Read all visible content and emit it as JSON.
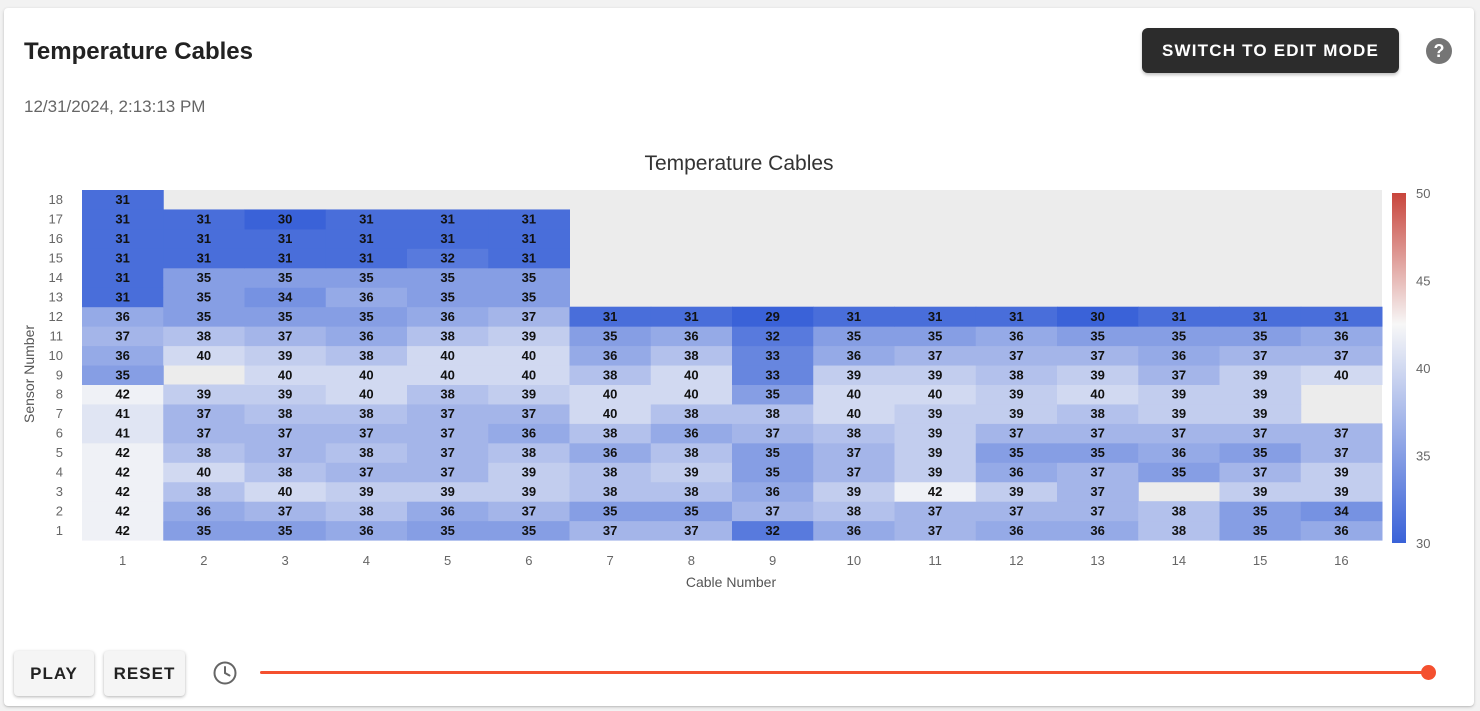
{
  "page": {
    "title": "Temperature Cables",
    "timestamp": "12/31/2024, 2:13:13 PM",
    "edit_button_label": "Switch to Edit Mode",
    "help_icon_glyph": "?",
    "play_label": "Play",
    "reset_label": "Reset",
    "icons": [
      "help-circle-icon",
      "history-clock-icon"
    ],
    "slider": {
      "value_fraction": 1.0,
      "color": "#f4502f"
    }
  },
  "chart_data": {
    "type": "heatmap",
    "title": "Temperature Cables",
    "xlabel": "Cable Number",
    "ylabel": "Sensor Number",
    "x": [
      "1",
      "2",
      "3",
      "4",
      "5",
      "6",
      "7",
      "8",
      "9",
      "10",
      "11",
      "12",
      "13",
      "14",
      "15",
      "16"
    ],
    "y": [
      "1",
      "2",
      "3",
      "4",
      "5",
      "6",
      "7",
      "8",
      "9",
      "10",
      "11",
      "12",
      "13",
      "14",
      "15",
      "16",
      "17",
      "18"
    ],
    "colorscale": {
      "min": 30,
      "max": 50,
      "low": "#3a62d8",
      "mid": "#f7f7f7",
      "high": "#c8453c",
      "mid_value": 42.5,
      "ticks": [
        30,
        35,
        40,
        45,
        50
      ]
    },
    "missing_color": "#ececec",
    "z": [
      [
        42,
        35,
        35,
        36,
        35,
        35,
        37,
        37,
        32,
        36,
        37,
        36,
        36,
        38,
        35,
        36
      ],
      [
        42,
        36,
        37,
        38,
        36,
        37,
        35,
        35,
        37,
        38,
        37,
        37,
        37,
        38,
        35,
        34
      ],
      [
        42,
        38,
        40,
        39,
        39,
        39,
        38,
        38,
        36,
        39,
        42,
        39,
        37,
        null,
        39,
        39
      ],
      [
        42,
        40,
        38,
        37,
        37,
        39,
        38,
        39,
        35,
        37,
        39,
        36,
        37,
        35,
        37,
        39
      ],
      [
        42,
        38,
        37,
        38,
        37,
        38,
        36,
        38,
        35,
        37,
        39,
        35,
        35,
        36,
        35,
        37
      ],
      [
        41,
        37,
        37,
        37,
        37,
        36,
        38,
        36,
        37,
        38,
        39,
        37,
        37,
        37,
        37,
        37
      ],
      [
        41,
        37,
        38,
        38,
        37,
        37,
        40,
        38,
        38,
        40,
        39,
        39,
        38,
        39,
        39,
        null
      ],
      [
        42,
        39,
        39,
        40,
        38,
        39,
        40,
        40,
        35,
        40,
        40,
        39,
        40,
        39,
        39,
        null
      ],
      [
        35,
        null,
        40,
        40,
        40,
        40,
        38,
        40,
        33,
        39,
        39,
        38,
        39,
        37,
        39,
        40
      ],
      [
        36,
        40,
        39,
        38,
        40,
        40,
        36,
        38,
        33,
        36,
        37,
        37,
        37,
        36,
        37,
        37
      ],
      [
        37,
        38,
        37,
        36,
        38,
        39,
        35,
        36,
        32,
        35,
        35,
        36,
        35,
        35,
        35,
        36
      ],
      [
        36,
        35,
        35,
        35,
        36,
        37,
        31,
        31,
        29,
        31,
        31,
        31,
        30,
        31,
        31,
        31
      ],
      [
        31,
        35,
        34,
        36,
        35,
        35,
        null,
        null,
        null,
        null,
        null,
        null,
        null,
        null,
        null,
        null
      ],
      [
        31,
        35,
        35,
        35,
        35,
        35,
        null,
        null,
        null,
        null,
        null,
        null,
        null,
        null,
        null,
        null
      ],
      [
        31,
        31,
        31,
        31,
        32,
        31,
        null,
        null,
        null,
        null,
        null,
        null,
        null,
        null,
        null,
        null
      ],
      [
        31,
        31,
        31,
        31,
        31,
        31,
        null,
        null,
        null,
        null,
        null,
        null,
        null,
        null,
        null,
        null
      ],
      [
        31,
        31,
        30,
        31,
        31,
        31,
        null,
        null,
        null,
        null,
        null,
        null,
        null,
        null,
        null,
        null
      ],
      [
        31,
        null,
        null,
        null,
        null,
        null,
        null,
        null,
        null,
        null,
        null,
        null,
        null,
        null,
        null,
        null
      ]
    ]
  }
}
